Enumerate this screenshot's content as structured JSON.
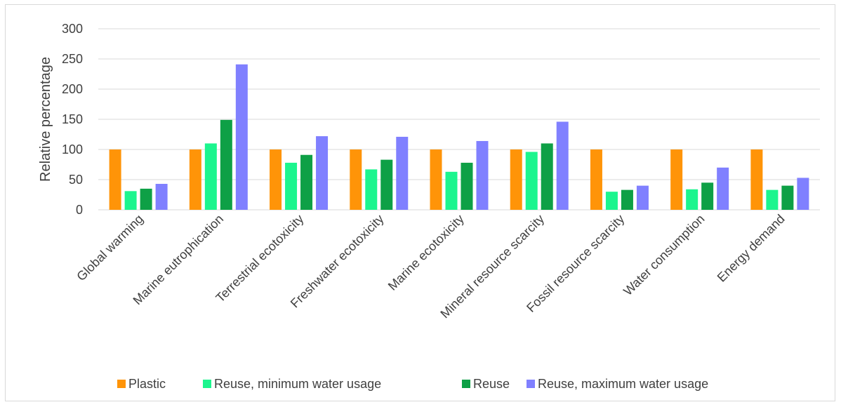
{
  "chart_data": {
    "type": "bar",
    "title": "",
    "xlabel": "",
    "ylabel": "Relative percentage",
    "ylim": [
      0,
      300
    ],
    "yticks": [
      0,
      50,
      100,
      150,
      200,
      250,
      300
    ],
    "grid": true,
    "legend_position": "bottom",
    "categories": [
      "Global warming",
      "Marine eutrophication",
      "Terrestrial ecotoxicity",
      "Freshwater ecotoxicity",
      "Marine ecotoxicity",
      "Mineral resource scarcity",
      "Fossil resource scarcity",
      "Water consumption",
      "Energy demand"
    ],
    "series": [
      {
        "name": "Plastic",
        "color": "#FF9408",
        "values": [
          100,
          100,
          100,
          100,
          100,
          100,
          100,
          100,
          100
        ]
      },
      {
        "name": "Reuse, minimum water usage",
        "color": "#1CF58E",
        "values": [
          31,
          110,
          78,
          67,
          63,
          96,
          30,
          34,
          33
        ]
      },
      {
        "name": "Reuse",
        "color": "#0EA046",
        "values": [
          35,
          149,
          91,
          83,
          78,
          110,
          33,
          45,
          40
        ]
      },
      {
        "name": "Reuse, maximum water usage",
        "color": "#8080FF",
        "values": [
          43,
          241,
          122,
          121,
          114,
          146,
          40,
          70,
          53
        ]
      }
    ]
  }
}
